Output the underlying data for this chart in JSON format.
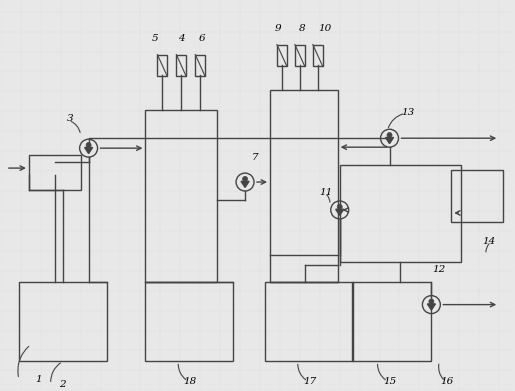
{
  "bg_color": "#e8e8e8",
  "line_color": "#444444",
  "lw": 1.0,
  "fig_w": 5.15,
  "fig_h": 3.91,
  "dpi": 100
}
